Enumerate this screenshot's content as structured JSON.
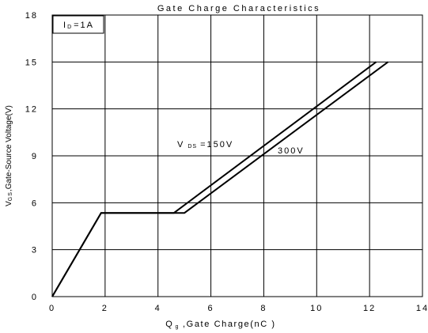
{
  "chart_data": {
    "type": "line",
    "title": "Gate Charge Characteristics",
    "xlabel_parts": {
      "symbol": "Q",
      "sub": "g",
      "rest": " ,Gate Charge(nC )"
    },
    "ylabel_parts": {
      "symbol": "V",
      "sub": "GS",
      "rest": ",Gate-Source Voltage(V)"
    },
    "xlim": [
      0,
      14
    ],
    "ylim": [
      0,
      18
    ],
    "x_ticks": [
      0,
      2,
      4,
      6,
      8,
      10,
      12,
      14
    ],
    "y_ticks": [
      0,
      3,
      6,
      9,
      12,
      15,
      18
    ],
    "grid": true,
    "condition_parts": {
      "symbol": "I",
      "sub": "D",
      "rest": "=1A"
    },
    "series": [
      {
        "name": "V DS =150V",
        "x": [
          0,
          1.85,
          4.6,
          12.25
        ],
        "y": [
          0,
          5.35,
          5.35,
          15
        ]
      },
      {
        "name": "300V",
        "x": [
          0,
          1.85,
          5.0,
          12.7
        ],
        "y": [
          0,
          5.35,
          5.35,
          15
        ]
      }
    ],
    "annotations": [
      {
        "symbol": "V",
        "sub": "DS",
        "rest": "=150V"
      },
      {
        "text": "300V"
      }
    ],
    "line_color": "#000000"
  }
}
